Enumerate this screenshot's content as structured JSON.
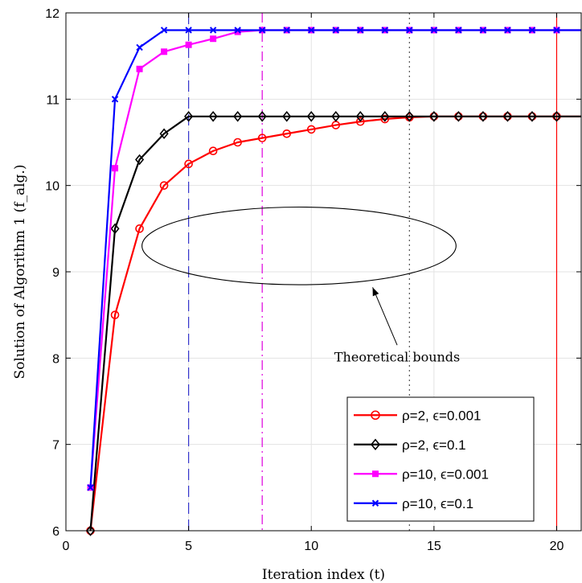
{
  "chart_data": {
    "type": "line",
    "title": "",
    "xlabel": "Iteration index (t)",
    "ylabel": "Solution of Algorithm 1 (f_alg.)",
    "xlim": [
      0,
      21
    ],
    "ylim": [
      6,
      12
    ],
    "xticks": [
      0,
      5,
      10,
      15,
      20
    ],
    "yticks": [
      6,
      7,
      8,
      9,
      10,
      11,
      12
    ],
    "grid": true,
    "legend_position": "bottom-right",
    "series": [
      {
        "name": "ρ=2, ϵ=0.001",
        "color": "#ff0000",
        "marker": "circle",
        "x": [
          1,
          2,
          3,
          4,
          5,
          6,
          7,
          8,
          9,
          10,
          11,
          12,
          13,
          14,
          15,
          16,
          17,
          18,
          19,
          20,
          21
        ],
        "y": [
          6.0,
          8.5,
          9.5,
          10.0,
          10.25,
          10.4,
          10.5,
          10.55,
          10.6,
          10.65,
          10.7,
          10.74,
          10.77,
          10.79,
          10.8,
          10.8,
          10.8,
          10.8,
          10.8,
          10.8,
          10.8
        ]
      },
      {
        "name": "ρ=2, ϵ=0.1",
        "color": "#000000",
        "marker": "diamond",
        "x": [
          1,
          2,
          3,
          4,
          5,
          6,
          7,
          8,
          9,
          10,
          11,
          12,
          13,
          14,
          15,
          16,
          17,
          18,
          19,
          20,
          21
        ],
        "y": [
          6.0,
          9.5,
          10.3,
          10.6,
          10.8,
          10.8,
          10.8,
          10.8,
          10.8,
          10.8,
          10.8,
          10.8,
          10.8,
          10.8,
          10.8,
          10.8,
          10.8,
          10.8,
          10.8,
          10.8,
          10.8
        ]
      },
      {
        "name": "ρ=10, ϵ=0.001",
        "color": "#ff00ff",
        "marker": "square",
        "x": [
          1,
          2,
          3,
          4,
          5,
          6,
          7,
          8,
          9,
          10,
          11,
          12,
          13,
          14,
          15,
          16,
          17,
          18,
          19,
          20,
          21
        ],
        "y": [
          6.5,
          10.2,
          11.35,
          11.55,
          11.63,
          11.7,
          11.78,
          11.8,
          11.8,
          11.8,
          11.8,
          11.8,
          11.8,
          11.8,
          11.8,
          11.8,
          11.8,
          11.8,
          11.8,
          11.8,
          11.8
        ]
      },
      {
        "name": "ρ=10, ϵ=0.1",
        "color": "#0000ff",
        "marker": "x",
        "x": [
          1,
          2,
          3,
          4,
          5,
          6,
          7,
          8,
          9,
          10,
          11,
          12,
          13,
          14,
          15,
          16,
          17,
          18,
          19,
          20,
          21
        ],
        "y": [
          6.5,
          11.0,
          11.6,
          11.8,
          11.8,
          11.8,
          11.8,
          11.8,
          11.8,
          11.8,
          11.8,
          11.8,
          11.8,
          11.8,
          11.8,
          11.8,
          11.8,
          11.8,
          11.8,
          11.8,
          11.8
        ]
      }
    ],
    "vertical_lines": [
      {
        "x": 5,
        "color": "#3333cc",
        "style": "dashed"
      },
      {
        "x": 8,
        "color": "#dd00dd",
        "style": "dashdot"
      },
      {
        "x": 14,
        "color": "#555555",
        "style": "dotted"
      },
      {
        "x": 20,
        "color": "#ff0000",
        "style": "solid"
      }
    ],
    "annotation": {
      "text": "Theoretical bounds",
      "ellipse_center": [
        9.5,
        9.3
      ],
      "ellipse_radius": [
        6.4,
        0.45
      ],
      "arrow_tip": [
        12.5,
        8.82
      ],
      "arrow_tail": [
        13.5,
        8.15
      ],
      "text_anchor": [
        13.5,
        8.1
      ]
    }
  }
}
